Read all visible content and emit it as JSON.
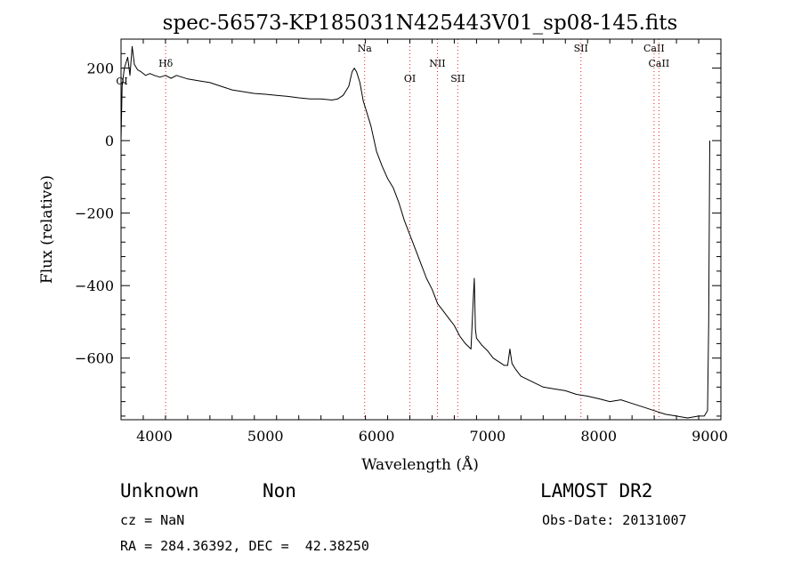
{
  "chart_data": {
    "type": "line",
    "title": "spec-56573-KP185031N425443V01_sp08-145.fits",
    "xlabel": "Wavelength (Å)",
    "ylabel": "Flux (relative)",
    "xlim": [
      3700,
      9100
    ],
    "ylim": [
      -770,
      280
    ],
    "grid": false,
    "x_ticks": [
      4000,
      5000,
      6000,
      7000,
      8000,
      9000
    ],
    "y_ticks": [
      200,
      0,
      -200,
      -400,
      -600
    ],
    "x_tick_labels": [
      "4000",
      "5000",
      "6000",
      "7000",
      "8000",
      "9000"
    ],
    "y_tick_labels": [
      "200",
      "0",
      "−200",
      "−400",
      "−600"
    ],
    "series": [
      {
        "x": [
          3700,
          3710,
          3730,
          3760,
          3780,
          3800,
          3820,
          3850,
          3880,
          3920,
          3960,
          4000,
          4050,
          4100,
          4150,
          4200,
          4300,
          4400,
          4500,
          4600,
          4700,
          4800,
          4900,
          5000,
          5100,
          5200,
          5300,
          5400,
          5500,
          5600,
          5650,
          5700,
          5750,
          5780,
          5800,
          5820,
          5850,
          5880,
          5900,
          5950,
          6000,
          6050,
          6100,
          6150,
          6200,
          6250,
          6300,
          6350,
          6400,
          6450,
          6500,
          6550,
          6600,
          6650,
          6700,
          6750,
          6800,
          6850,
          6870,
          6880,
          6890,
          6900,
          6950,
          7000,
          7050,
          7100,
          7150,
          7180,
          7200,
          7220,
          7250,
          7300,
          7400,
          7500,
          7600,
          7700,
          7800,
          7900,
          8000,
          8100,
          8200,
          8300,
          8400,
          8500,
          8600,
          8700,
          8800,
          8900,
          8950,
          8980,
          8990,
          9000
        ],
        "y": [
          0,
          150,
          200,
          230,
          180,
          260,
          210,
          195,
          190,
          180,
          185,
          180,
          175,
          180,
          172,
          180,
          170,
          165,
          160,
          150,
          140,
          135,
          130,
          128,
          125,
          122,
          118,
          115,
          115,
          112,
          115,
          125,
          150,
          190,
          200,
          190,
          160,
          110,
          90,
          40,
          -30,
          -70,
          -105,
          -130,
          -170,
          -220,
          -260,
          -300,
          -340,
          -380,
          -410,
          -450,
          -470,
          -490,
          -510,
          -540,
          -560,
          -575,
          -440,
          -380,
          -520,
          -545,
          -565,
          -580,
          -600,
          -610,
          -620,
          -620,
          -575,
          -615,
          -630,
          -650,
          -665,
          -680,
          -685,
          -690,
          -700,
          -705,
          -712,
          -720,
          -715,
          -725,
          -735,
          -745,
          -755,
          -760,
          -765,
          -760,
          -760,
          -745,
          -500,
          0
        ]
      }
    ],
    "line_labels": [
      {
        "text": "Hδ",
        "x": 4102
      },
      {
        "text": "Na",
        "x": 5893
      },
      {
        "text": "OI",
        "x": 6300
      },
      {
        "text": "NII",
        "x": 6548
      },
      {
        "text": "SII",
        "x": 6731
      },
      {
        "text": "SII",
        "x": 7840
      },
      {
        "text": "CaII",
        "x": 8498
      },
      {
        "text": "CaII",
        "x": 8542
      }
    ],
    "edge_label": "OI",
    "line_color": "#000000",
    "marker_line_color": "#e02020"
  },
  "info": {
    "class": "Unknown",
    "subclass": "Non",
    "survey": "LAMOST DR2",
    "cz": "cz = NaN",
    "obs_date": "Obs-Date: 20131007",
    "coords": "RA = 284.36392, DEC =  42.38250"
  }
}
